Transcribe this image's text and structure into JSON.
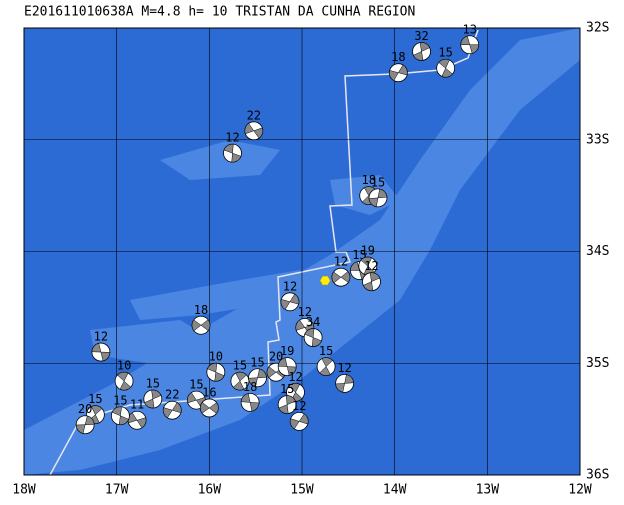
{
  "chart_data": {
    "type": "map",
    "title": "E201611010638A M=4.8 h= 10 TRISTAN DA CUNHA REGION",
    "xlim": [
      -18,
      -12
    ],
    "ylim": [
      -36,
      -32
    ],
    "xticks": [
      {
        "value": -18,
        "label": "18W"
      },
      {
        "value": -17,
        "label": "17W"
      },
      {
        "value": -16,
        "label": "16W"
      },
      {
        "value": -15,
        "label": "15W"
      },
      {
        "value": -14,
        "label": "14W"
      },
      {
        "value": -13,
        "label": "13W"
      },
      {
        "value": -12,
        "label": "12W"
      }
    ],
    "yticks": [
      {
        "value": -32,
        "label": "32S"
      },
      {
        "value": -33,
        "label": "33S"
      },
      {
        "value": -34,
        "label": "34S"
      },
      {
        "value": -35,
        "label": "35S"
      },
      {
        "value": -36,
        "label": "36S"
      }
    ],
    "grid": true,
    "epicenter": {
      "lon": -14.75,
      "lat": -34.26,
      "color": "#ffee00"
    },
    "events": [
      {
        "lon": -13.19,
        "lat": -32.15,
        "depth": 13
      },
      {
        "lon": -13.45,
        "lat": -32.36,
        "depth": 15
      },
      {
        "lon": -13.71,
        "lat": -32.21,
        "depth": 32
      },
      {
        "lon": -13.96,
        "lat": -32.4,
        "depth": 18
      },
      {
        "lon": -15.52,
        "lat": -32.92,
        "depth": 22
      },
      {
        "lon": -15.75,
        "lat": -33.12,
        "depth": 12
      },
      {
        "lon": -14.28,
        "lat": -33.5,
        "depth": 18
      },
      {
        "lon": -14.18,
        "lat": -33.52,
        "depth": 15
      },
      {
        "lon": -14.58,
        "lat": -34.23,
        "depth": 12
      },
      {
        "lon": -14.38,
        "lat": -34.17,
        "depth": 15
      },
      {
        "lon": -14.29,
        "lat": -34.13,
        "depth": 19
      },
      {
        "lon": -14.25,
        "lat": -34.27,
        "depth": 12
      },
      {
        "lon": -15.13,
        "lat": -34.45,
        "depth": 12
      },
      {
        "lon": -14.97,
        "lat": -34.68,
        "depth": 12
      },
      {
        "lon": -14.88,
        "lat": -34.77,
        "depth": 34
      },
      {
        "lon": -14.74,
        "lat": -35.03,
        "depth": 15
      },
      {
        "lon": -14.54,
        "lat": -35.18,
        "depth": 12
      },
      {
        "lon": -16.09,
        "lat": -34.66,
        "depth": 18
      },
      {
        "lon": -17.17,
        "lat": -34.9,
        "depth": 12
      },
      {
        "lon": -16.92,
        "lat": -35.16,
        "depth": 10
      },
      {
        "lon": -16.61,
        "lat": -35.32,
        "depth": 15
      },
      {
        "lon": -16.4,
        "lat": -35.42,
        "depth": 22
      },
      {
        "lon": -16.14,
        "lat": -35.33,
        "depth": 15
      },
      {
        "lon": -15.93,
        "lat": -35.08,
        "depth": 10
      },
      {
        "lon": -15.67,
        "lat": -35.16,
        "depth": 15
      },
      {
        "lon": -15.48,
        "lat": -35.13,
        "depth": 15
      },
      {
        "lon": -15.28,
        "lat": -35.08,
        "depth": 20
      },
      {
        "lon": -15.16,
        "lat": -35.03,
        "depth": 19
      },
      {
        "lon": -15.07,
        "lat": -35.26,
        "depth": 12
      },
      {
        "lon": -15.16,
        "lat": -35.37,
        "depth": 15
      },
      {
        "lon": -15.03,
        "lat": -35.52,
        "depth": 12
      },
      {
        "lon": -16.78,
        "lat": -35.51,
        "depth": 11
      },
      {
        "lon": -16.96,
        "lat": -35.47,
        "depth": 15
      },
      {
        "lon": -17.23,
        "lat": -35.46,
        "depth": 15
      },
      {
        "lon": -17.34,
        "lat": -35.55,
        "depth": 20
      },
      {
        "lon": -16.0,
        "lat": -35.4,
        "depth": 16
      },
      {
        "lon": -15.56,
        "lat": -35.35,
        "depth": 18
      }
    ]
  }
}
